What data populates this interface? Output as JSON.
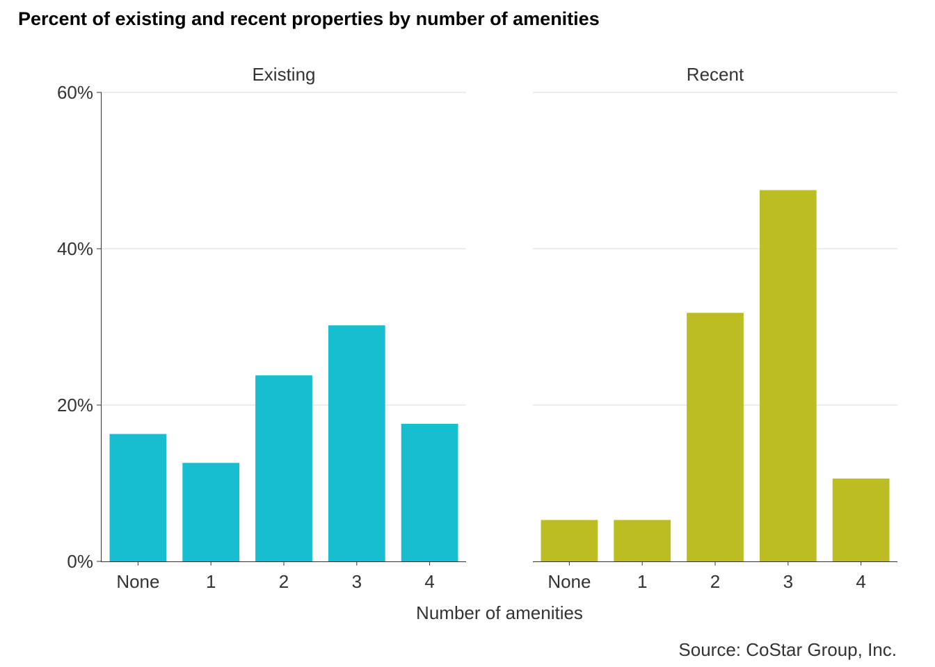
{
  "title": "Percent of existing and recent properties by number of amenities",
  "source": "Source: CoStar Group, Inc.",
  "chart_data": {
    "type": "bar",
    "title": "Percent of existing and recent properties by number of amenities",
    "xlabel": "Number of amenities",
    "ylabel": "",
    "ylim": [
      0,
      60
    ],
    "yticks": [
      "0%",
      "20%",
      "40%",
      "60%"
    ],
    "yticks_values": [
      0,
      20,
      40,
      60
    ],
    "grid": true,
    "categories": [
      "None",
      "1",
      "2",
      "3",
      "4"
    ],
    "panels": [
      {
        "name": "Existing",
        "color": "#17becf",
        "values": [
          16.3,
          12.6,
          23.8,
          30.2,
          17.6
        ]
      },
      {
        "name": "Recent",
        "color": "#bcbd22",
        "values": [
          5.3,
          5.3,
          31.8,
          47.5,
          10.6
        ]
      }
    ]
  }
}
